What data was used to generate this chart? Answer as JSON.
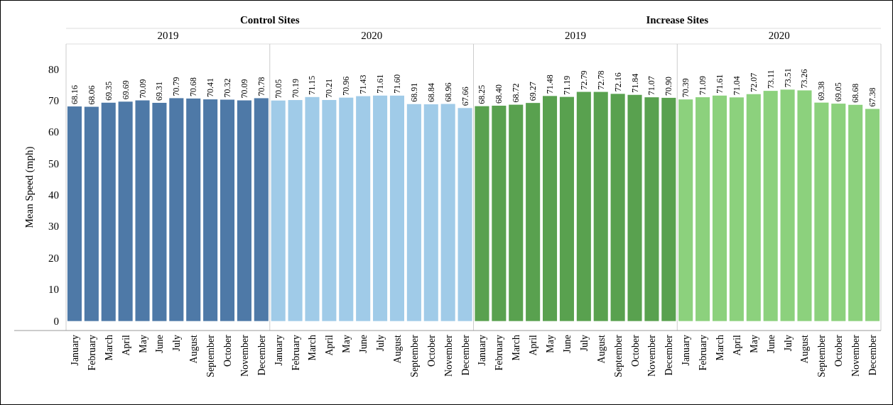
{
  "chart_data": {
    "type": "bar",
    "ylabel": "Mean Speed (mph)",
    "categories": [
      "January",
      "February",
      "March",
      "April",
      "May",
      "June",
      "July",
      "August",
      "September",
      "October",
      "November",
      "December",
      "January",
      "February",
      "March",
      "April",
      "May",
      "June",
      "July",
      "August",
      "September",
      "October",
      "November",
      "December",
      "January",
      "February",
      "March",
      "April",
      "May",
      "June",
      "July",
      "August",
      "September",
      "October",
      "November",
      "December",
      "January",
      "February",
      "March",
      "April",
      "May",
      "June",
      "July",
      "August",
      "September",
      "October",
      "November",
      "December"
    ],
    "values": [
      68.16,
      68.06,
      69.35,
      69.69,
      70.09,
      69.31,
      70.79,
      70.68,
      70.41,
      70.32,
      70.09,
      70.78,
      70.05,
      70.19,
      71.15,
      70.21,
      70.96,
      71.43,
      71.61,
      71.6,
      68.91,
      68.84,
      68.96,
      67.66,
      68.25,
      68.4,
      68.72,
      69.27,
      71.48,
      71.19,
      72.79,
      72.78,
      72.16,
      71.84,
      71.07,
      70.9,
      70.39,
      71.09,
      71.61,
      71.04,
      72.07,
      73.11,
      73.51,
      73.26,
      69.38,
      69.05,
      68.68,
      67.38
    ],
    "colors": [
      "#4e79a7",
      "#4e79a7",
      "#4e79a7",
      "#4e79a7",
      "#4e79a7",
      "#4e79a7",
      "#4e79a7",
      "#4e79a7",
      "#4e79a7",
      "#4e79a7",
      "#4e79a7",
      "#4e79a7",
      "#a0cbe8",
      "#a0cbe8",
      "#a0cbe8",
      "#a0cbe8",
      "#a0cbe8",
      "#a0cbe8",
      "#a0cbe8",
      "#a0cbe8",
      "#a0cbe8",
      "#a0cbe8",
      "#a0cbe8",
      "#a0cbe8",
      "#59a14f",
      "#59a14f",
      "#59a14f",
      "#59a14f",
      "#59a14f",
      "#59a14f",
      "#59a14f",
      "#59a14f",
      "#59a14f",
      "#59a14f",
      "#59a14f",
      "#59a14f",
      "#8cd17d",
      "#8cd17d",
      "#8cd17d",
      "#8cd17d",
      "#8cd17d",
      "#8cd17d",
      "#8cd17d",
      "#8cd17d",
      "#8cd17d",
      "#8cd17d",
      "#8cd17d",
      "#8cd17d"
    ],
    "annotations": [
      "Control Sites",
      "Increase Sites",
      "2019",
      "2020",
      "2019",
      "2020"
    ],
    "value_labels": [
      "68.16",
      "68.06",
      "69.35",
      "69.69",
      "70.09",
      "69.31",
      "70.79",
      "70.68",
      "70.41",
      "70.32",
      "70.09",
      "70.78",
      "70.05",
      "70.19",
      "71.15",
      "70.21",
      "70.96",
      "71.43",
      "71.61",
      "71.60",
      "68.91",
      "68.84",
      "68.96",
      "67.66",
      "68.25",
      "68.40",
      "68.72",
      "69.27",
      "71.48",
      "71.19",
      "72.79",
      "72.78",
      "72.16",
      "71.84",
      "71.07",
      "70.90",
      "70.39",
      "71.09",
      "71.61",
      "71.04",
      "72.07",
      "73.11",
      "73.51",
      "73.26",
      "69.38",
      "69.05",
      "68.68",
      "67.38"
    ],
    "ylim": [
      -3,
      88
    ],
    "yticks": [
      0,
      10,
      20,
      30,
      40,
      50,
      60,
      70,
      80
    ]
  }
}
